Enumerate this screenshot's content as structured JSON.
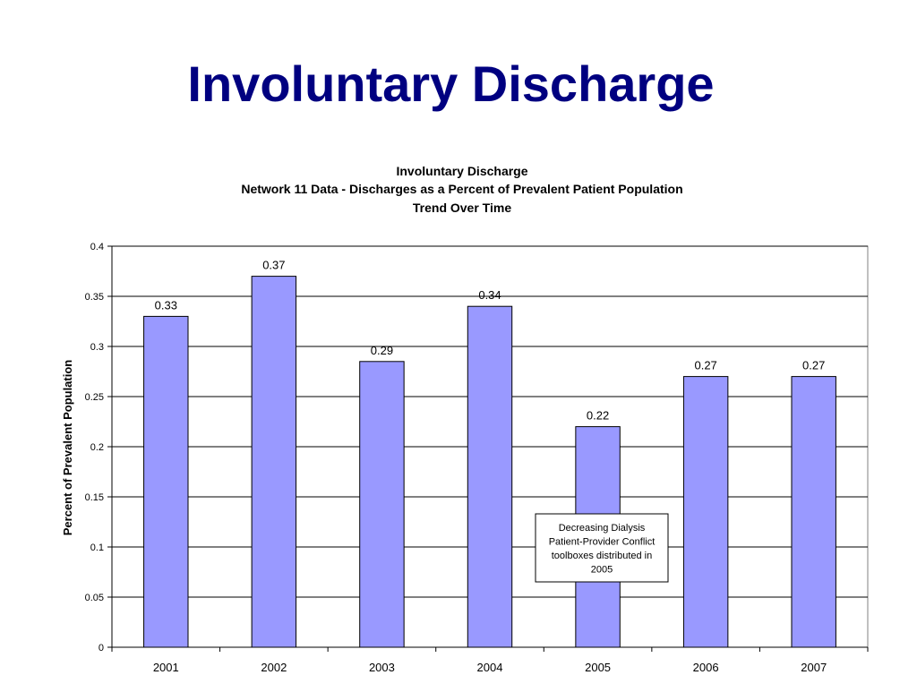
{
  "slide": {
    "title": "Involuntary Discharge"
  },
  "chart_data": {
    "type": "bar",
    "title": "Involuntary Discharge",
    "subtitle": "Network 11 Data - Discharges as a Percent of Prevalent Patient Population",
    "subtitle2": "Trend Over Time",
    "xlabel": "",
    "ylabel": "Percent of Prevalent Population",
    "categories": [
      "2001",
      "2002",
      "2003",
      "2004",
      "2005",
      "2006",
      "2007"
    ],
    "values": [
      0.33,
      0.37,
      0.285,
      0.34,
      0.22,
      0.27,
      0.27
    ],
    "data_labels": [
      "0.33",
      "0.37",
      "0.29",
      "0.34",
      "0.22",
      "0.27",
      "0.27"
    ],
    "ylim": [
      0,
      0.4
    ],
    "yticks": [
      0,
      0.05,
      0.1,
      0.15,
      0.2,
      0.25,
      0.3,
      0.35,
      0.4
    ],
    "ytick_labels": [
      "0",
      "0.05",
      "0.1",
      "0.15",
      "0.2",
      "0.25",
      "0.3",
      "0.35",
      "0.4"
    ],
    "grid": true,
    "bar_color": "#9999FF",
    "annotation": {
      "lines": [
        "Decreasing Dialysis",
        "Patient-Provider Conflict",
        "toolboxes distributed in",
        "2005"
      ]
    }
  }
}
